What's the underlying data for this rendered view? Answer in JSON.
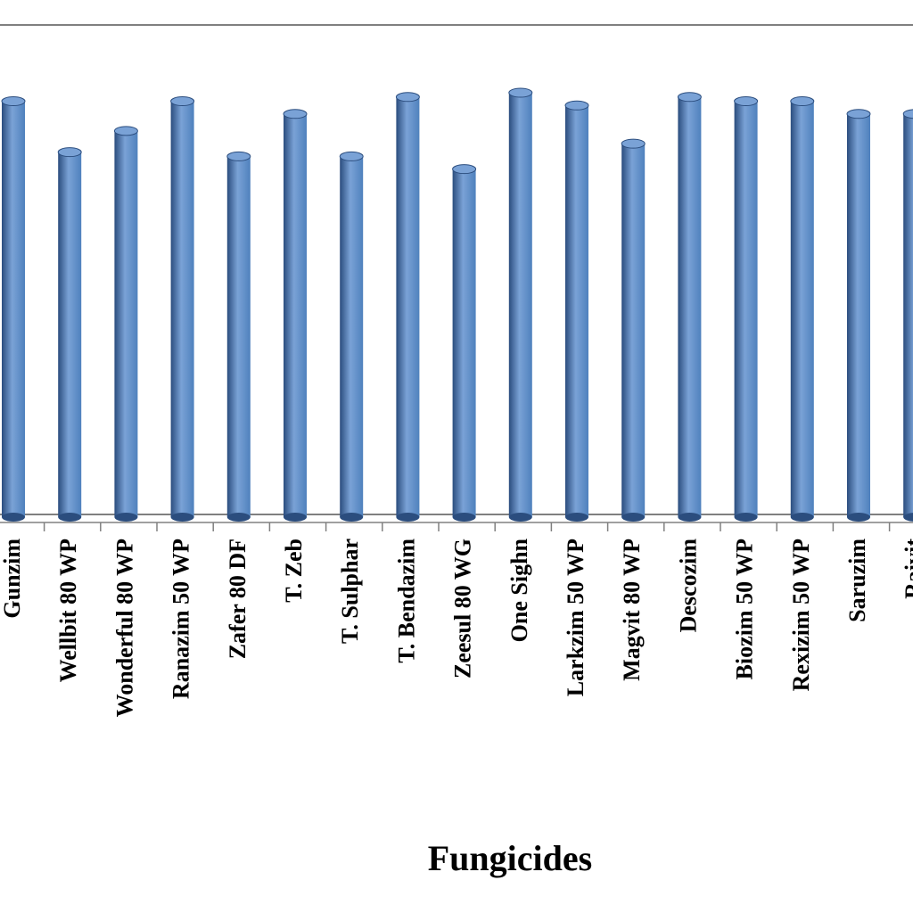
{
  "chart_data": {
    "type": "bar",
    "style": "3d-cylinder",
    "xlabel": "Fungicides",
    "categories": [
      "Gunzim",
      "Wellbit 80 WP",
      "Wonderful 80 WP",
      "Ranazim 50 WP",
      "Zafer 80 DF",
      "T. Zeb",
      "T. Sulphar",
      "T. Bendazim",
      "Zeesul 80 WG",
      "One Sighn",
      "Larkzim 50 WP",
      "Magvit 80 WP",
      "Descozim",
      "Biozim 50 WP",
      "Rexizim 50 WP",
      "Saruzim",
      "Raivit"
    ],
    "values": [
      98,
      86,
      91,
      98,
      85,
      95,
      85,
      99,
      82,
      100,
      97,
      88,
      99,
      98,
      98,
      95,
      95
    ],
    "ylim": [
      0,
      100
    ],
    "grid": false,
    "legend": false,
    "colors": {
      "bar": "#4f81bd",
      "bar_dark": "#2b4d7e",
      "bar_light": "#7aa2d6",
      "axis": "#808080"
    }
  }
}
